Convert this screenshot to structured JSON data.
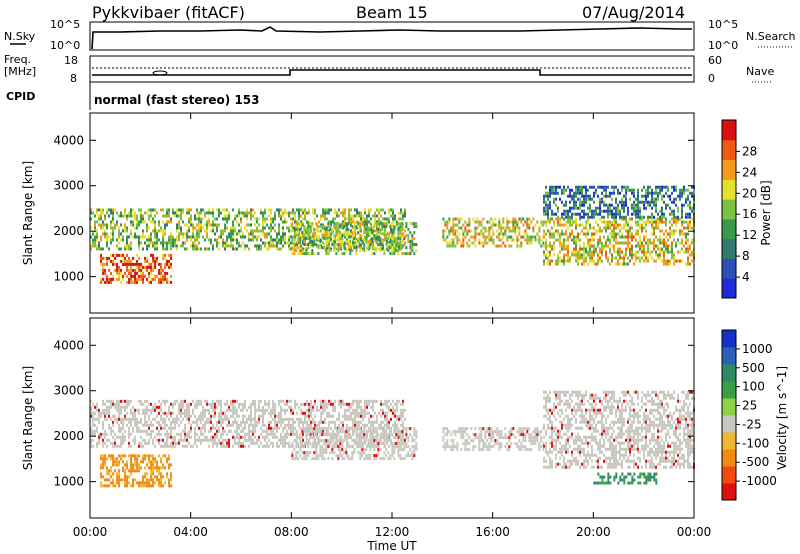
{
  "header": {
    "title": "Pykkvibaer (fitACF)",
    "beam": "Beam 15",
    "date": "07/Aug/2014"
  },
  "top_panels": {
    "nsky_label": "N.Sky",
    "nsky_ticks": [
      "10^5",
      "10^0"
    ],
    "nsearch_label": "N.Search",
    "nsearch_ticks": [
      "10^5",
      "10^0"
    ],
    "freq_label": "Freq.",
    "freq_unit": "[MHz]",
    "freq_ticks": [
      "18",
      "8"
    ],
    "nave_label": "Nave",
    "nave_ticks": [
      "60",
      "0"
    ],
    "cpid_label": "CPID",
    "cpid_text": "normal (fast stereo) 153"
  },
  "colors": {
    "power_scale": [
      "#1f2bd6",
      "#2e4fb8",
      "#2f7a6e",
      "#3a9a4a",
      "#7cc241",
      "#e6e02a",
      "#f29a1a",
      "#ef5a10",
      "#d81010"
    ],
    "velocity_scale": [
      "#1530c8",
      "#2a60b8",
      "#2e8a60",
      "#3aa048",
      "#8ed048",
      "#c8c8c0",
      "#f0b830",
      "#f08a10",
      "#f04a10",
      "#e01010"
    ]
  },
  "chart_data": [
    {
      "type": "heatmap",
      "title": "",
      "xlabel": "",
      "ylabel": "Slant Range [km]",
      "x_ticks": [
        "00:00",
        "04:00",
        "08:00",
        "12:00",
        "16:00",
        "20:00",
        "00:00"
      ],
      "y_ticks": [
        "1000",
        "2000",
        "3000",
        "4000"
      ],
      "ylim": [
        200,
        4600
      ],
      "colorbar_label": "Power [dB]",
      "colorbar_ticks": [
        "4",
        "8",
        "12",
        "16",
        "20",
        "24",
        "28"
      ],
      "regions": [
        {
          "name": "upper band",
          "x_hours": [
            0.0,
            12.5
          ],
          "y_km": [
            1600,
            2500
          ],
          "dB": 14
        },
        {
          "name": "early strong echo",
          "x_hours": [
            0.4,
            3.2
          ],
          "y_km": [
            900,
            1500
          ],
          "dB": 24
        },
        {
          "name": "mid-day band",
          "x_hours": [
            8.0,
            13.0
          ],
          "y_km": [
            1500,
            2200
          ],
          "dB": 14
        },
        {
          "name": "afternoon band",
          "x_hours": [
            14.0,
            18.0
          ],
          "y_km": [
            1700,
            2300
          ],
          "dB": 16
        },
        {
          "name": "evening band",
          "x_hours": [
            18.0,
            24.0
          ],
          "y_km": [
            1300,
            2300
          ],
          "dB": 16
        },
        {
          "name": "evening upper",
          "x_hours": [
            18.0,
            24.0
          ],
          "y_km": [
            2300,
            3000
          ],
          "dB": 8
        }
      ]
    },
    {
      "type": "heatmap",
      "title": "",
      "xlabel": "Time UT",
      "ylabel": "Slant Range [km]",
      "x_ticks": [
        "00:00",
        "04:00",
        "08:00",
        "12:00",
        "16:00",
        "20:00",
        "00:00"
      ],
      "y_ticks": [
        "1000",
        "2000",
        "3000",
        "4000"
      ],
      "ylim": [
        200,
        4600
      ],
      "colorbar_label": "Velocity [m s^-1]",
      "colorbar_ticks": [
        "1000",
        "500",
        "100",
        "25",
        "-25",
        "-100",
        "-500",
        "-1000"
      ],
      "regions": [
        {
          "name": "ground scatter band",
          "x_hours": [
            0.0,
            12.5
          ],
          "y_km": [
            1800,
            2800
          ],
          "v": 0
        },
        {
          "name": "negative velocity echo",
          "x_hours": [
            0.4,
            3.2
          ],
          "y_km": [
            900,
            1600
          ],
          "v": -200
        },
        {
          "name": "mid-day ground scatter",
          "x_hours": [
            8.0,
            13.0
          ],
          "y_km": [
            1500,
            2200
          ],
          "v": 0
        },
        {
          "name": "afternoon ground scatter",
          "x_hours": [
            14.0,
            18.0
          ],
          "y_km": [
            1700,
            2200
          ],
          "v": 0
        },
        {
          "name": "evening ground scatter",
          "x_hours": [
            18.0,
            24.0
          ],
          "y_km": [
            1300,
            3000
          ],
          "v": 0
        },
        {
          "name": "evening positive",
          "x_hours": [
            20.0,
            22.5
          ],
          "y_km": [
            1000,
            1200
          ],
          "v": 150
        }
      ]
    }
  ]
}
